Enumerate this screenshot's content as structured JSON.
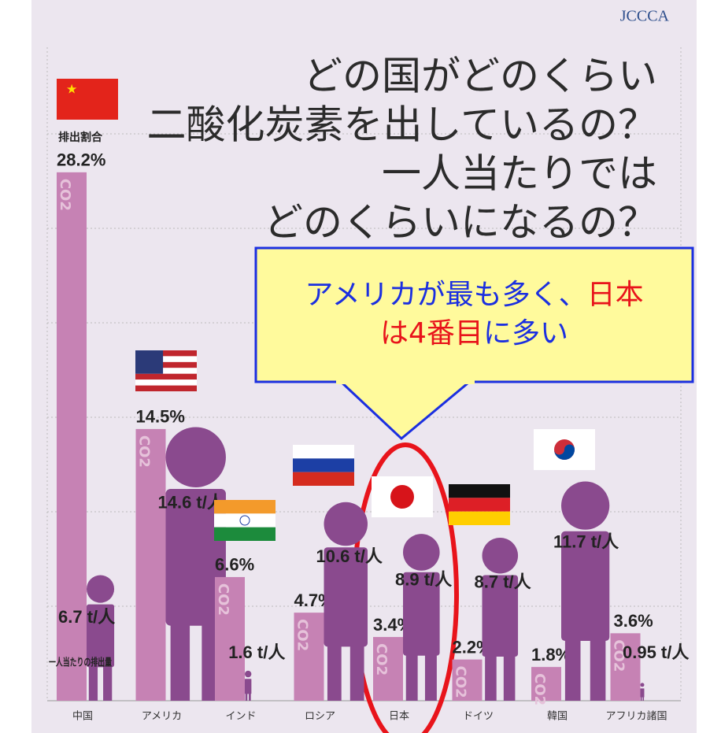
{
  "logo": "JCCCA",
  "chart_data": {
    "type": "bar",
    "title": [
      "どの国がどのくらい",
      "二酸化炭素を出しているの？",
      "一人当たりでは",
      "どのくらいになるの？"
    ],
    "categories": [
      "中国",
      "アメリカ",
      "インド",
      "ロシア",
      "日本",
      "ドイツ",
      "韓国",
      "アフリカ諸国"
    ],
    "bar_text": "CO2",
    "series": [
      {
        "name": "排出割合",
        "color": "#c682b4",
        "values": [
          28.2,
          14.5,
          6.6,
          4.7,
          3.4,
          2.2,
          1.8,
          3.6
        ],
        "value_labels": [
          "28.2%",
          "14.5%",
          "6.6%",
          "4.7%",
          "3.4%",
          "2.2%",
          "1.8%",
          "3.6%"
        ]
      },
      {
        "name": "一人当たりの排出量",
        "color": "#8a4a8e",
        "values": [
          6.7,
          14.6,
          1.6,
          10.6,
          8.9,
          8.7,
          11.7,
          0.95
        ],
        "value_labels": [
          "6.7 t/人",
          "14.6 t/人",
          "1.6 t/人",
          "10.6 t/人",
          "8.9 t/人",
          "8.7 t/人",
          "11.7 t/人",
          "0.95 t/人"
        ]
      }
    ],
    "callout": [
      "アメリカが最も多く、",
      "日本",
      "は4番目",
      "に多い"
    ]
  }
}
